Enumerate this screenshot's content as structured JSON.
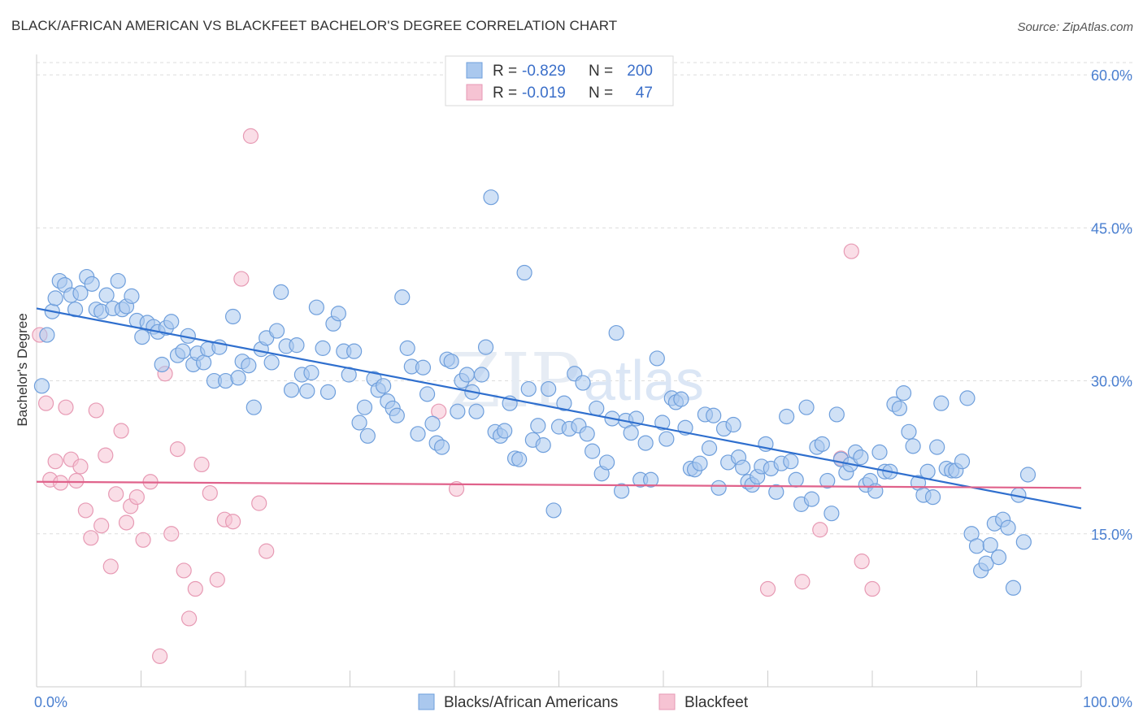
{
  "title": "BLACK/AFRICAN AMERICAN VS BLACKFEET BACHELOR'S DEGREE CORRELATION CHART",
  "source": "Source: ZipAtlas.com",
  "watermark": {
    "zip": "ZIP",
    "atlas": "atlas"
  },
  "legend_top": [
    {
      "r_label": "R =",
      "r_value": "-0.829",
      "n_label": "N =",
      "n_value": "200"
    },
    {
      "r_label": "R =",
      "r_value": "-0.019",
      "n_label": "N =",
      "n_value": "47"
    }
  ],
  "legend_bottom": [
    "Blacks/African Americans",
    "Blackfeet"
  ],
  "colors": {
    "blue_fill": "#aac8ee",
    "blue_stroke": "#6f9fdc",
    "blue_line": "#2f6fce",
    "pink_fill": "#f6c3d3",
    "pink_stroke": "#e79ab4",
    "pink_line": "#e0628b",
    "tick": "#4a7fd0",
    "grid": "#dddddd"
  },
  "chart_data": {
    "type": "scatter",
    "title": "BLACK/AFRICAN AMERICAN VS BLACKFEET BACHELOR'S DEGREE CORRELATION CHART",
    "xlabel": "",
    "ylabel": "Bachelor's Degree",
    "xlim": [
      0,
      100
    ],
    "ylim": [
      0,
      62
    ],
    "x_tick_labels": [
      "0.0%",
      "100.0%"
    ],
    "y_ticks": [
      15,
      30,
      45,
      60
    ],
    "y_tick_labels": [
      "15.0%",
      "30.0%",
      "45.0%",
      "60.0%"
    ],
    "grid": "horizontal dashed",
    "legend": "top-center",
    "series": [
      {
        "name": "Blacks/African Americans",
        "color": "#aac8ee",
        "trend": {
          "x": [
            0,
            100
          ],
          "y": [
            37.1,
            17.5
          ]
        },
        "points": [
          [
            0.5,
            29.5
          ],
          [
            1.0,
            34.5
          ],
          [
            1.5,
            36.8
          ],
          [
            1.8,
            38.1
          ],
          [
            2.2,
            39.8
          ],
          [
            2.7,
            39.4
          ],
          [
            3.3,
            38.4
          ],
          [
            3.7,
            37.0
          ],
          [
            4.2,
            38.6
          ],
          [
            4.8,
            40.2
          ],
          [
            5.3,
            39.5
          ],
          [
            5.7,
            37.0
          ],
          [
            6.2,
            36.8
          ],
          [
            6.7,
            38.4
          ],
          [
            7.3,
            37.1
          ],
          [
            7.8,
            39.8
          ],
          [
            8.2,
            37.0
          ],
          [
            8.6,
            37.3
          ],
          [
            9.1,
            38.3
          ],
          [
            9.6,
            35.9
          ],
          [
            10.1,
            34.3
          ],
          [
            10.6,
            35.7
          ],
          [
            11.2,
            35.3
          ],
          [
            11.6,
            34.8
          ],
          [
            12.0,
            31.6
          ],
          [
            12.4,
            35.2
          ],
          [
            12.9,
            35.8
          ],
          [
            13.5,
            32.5
          ],
          [
            14.0,
            32.9
          ],
          [
            14.5,
            34.4
          ],
          [
            15.0,
            31.6
          ],
          [
            15.4,
            32.7
          ],
          [
            16.0,
            31.8
          ],
          [
            16.4,
            33.1
          ],
          [
            17.0,
            30.0
          ],
          [
            17.5,
            33.3
          ],
          [
            18.1,
            30.0
          ],
          [
            18.8,
            36.3
          ],
          [
            19.3,
            30.3
          ],
          [
            19.7,
            31.9
          ],
          [
            20.3,
            31.5
          ],
          [
            20.8,
            27.4
          ],
          [
            21.5,
            33.1
          ],
          [
            22.0,
            34.2
          ],
          [
            22.5,
            31.8
          ],
          [
            23.0,
            34.9
          ],
          [
            23.4,
            38.7
          ],
          [
            23.9,
            33.4
          ],
          [
            24.4,
            29.1
          ],
          [
            24.9,
            33.5
          ],
          [
            25.4,
            30.6
          ],
          [
            25.9,
            29.0
          ],
          [
            26.3,
            30.8
          ],
          [
            26.8,
            37.2
          ],
          [
            27.4,
            33.2
          ],
          [
            27.9,
            28.9
          ],
          [
            28.4,
            35.6
          ],
          [
            28.9,
            36.6
          ],
          [
            29.4,
            32.9
          ],
          [
            29.9,
            30.6
          ],
          [
            30.4,
            32.9
          ],
          [
            30.9,
            25.9
          ],
          [
            31.4,
            27.4
          ],
          [
            31.7,
            24.6
          ],
          [
            32.3,
            30.2
          ],
          [
            32.7,
            29.1
          ],
          [
            33.2,
            29.5
          ],
          [
            33.6,
            28.0
          ],
          [
            34.1,
            27.3
          ],
          [
            34.5,
            26.6
          ],
          [
            35.0,
            38.2
          ],
          [
            35.5,
            33.2
          ],
          [
            35.9,
            31.4
          ],
          [
            36.5,
            24.8
          ],
          [
            37.0,
            31.3
          ],
          [
            37.4,
            28.7
          ],
          [
            37.9,
            25.8
          ],
          [
            38.3,
            23.9
          ],
          [
            38.8,
            23.5
          ],
          [
            39.3,
            32.1
          ],
          [
            39.7,
            31.9
          ],
          [
            40.3,
            27.0
          ],
          [
            40.7,
            30.0
          ],
          [
            41.2,
            30.6
          ],
          [
            41.7,
            28.9
          ],
          [
            42.1,
            27.0
          ],
          [
            42.6,
            30.6
          ],
          [
            43.0,
            33.3
          ],
          [
            43.5,
            48.0
          ],
          [
            43.9,
            25.0
          ],
          [
            44.4,
            24.6
          ],
          [
            44.8,
            25.1
          ],
          [
            45.3,
            27.8
          ],
          [
            45.8,
            22.4
          ],
          [
            46.2,
            22.3
          ],
          [
            46.7,
            40.6
          ],
          [
            47.1,
            29.2
          ],
          [
            47.5,
            24.2
          ],
          [
            48.0,
            25.6
          ],
          [
            48.5,
            23.7
          ],
          [
            49.0,
            29.2
          ],
          [
            49.5,
            17.3
          ],
          [
            50.0,
            25.5
          ],
          [
            50.5,
            27.8
          ],
          [
            51.0,
            25.3
          ],
          [
            51.5,
            30.7
          ],
          [
            51.9,
            25.6
          ],
          [
            52.3,
            29.8
          ],
          [
            52.7,
            24.8
          ],
          [
            53.2,
            23.1
          ],
          [
            53.6,
            27.3
          ],
          [
            54.1,
            20.9
          ],
          [
            54.6,
            22.0
          ],
          [
            55.1,
            26.3
          ],
          [
            55.5,
            34.7
          ],
          [
            56.0,
            19.2
          ],
          [
            56.4,
            26.1
          ],
          [
            56.9,
            24.9
          ],
          [
            57.4,
            26.3
          ],
          [
            57.8,
            20.3
          ],
          [
            58.3,
            23.9
          ],
          [
            58.8,
            20.3
          ],
          [
            59.4,
            32.2
          ],
          [
            59.9,
            25.9
          ],
          [
            60.3,
            24.3
          ],
          [
            60.8,
            28.3
          ],
          [
            61.2,
            27.9
          ],
          [
            61.7,
            28.2
          ],
          [
            62.1,
            25.4
          ],
          [
            62.6,
            21.4
          ],
          [
            63.0,
            21.3
          ],
          [
            63.5,
            21.9
          ],
          [
            64.0,
            26.7
          ],
          [
            64.4,
            23.4
          ],
          [
            64.8,
            26.6
          ],
          [
            65.3,
            19.5
          ],
          [
            65.8,
            25.3
          ],
          [
            66.2,
            22.0
          ],
          [
            66.7,
            25.7
          ],
          [
            67.2,
            22.5
          ],
          [
            67.6,
            21.5
          ],
          [
            68.1,
            20.1
          ],
          [
            68.5,
            19.8
          ],
          [
            69.0,
            20.6
          ],
          [
            69.4,
            21.6
          ],
          [
            69.8,
            23.8
          ],
          [
            70.3,
            21.4
          ],
          [
            70.8,
            19.1
          ],
          [
            71.3,
            21.9
          ],
          [
            71.8,
            26.5
          ],
          [
            72.2,
            22.1
          ],
          [
            72.7,
            20.3
          ],
          [
            73.2,
            17.9
          ],
          [
            73.7,
            27.4
          ],
          [
            74.2,
            18.4
          ],
          [
            74.7,
            23.5
          ],
          [
            75.2,
            23.8
          ],
          [
            75.7,
            20.2
          ],
          [
            76.1,
            17.0
          ],
          [
            76.6,
            26.7
          ],
          [
            77.0,
            22.3
          ],
          [
            77.5,
            21.0
          ],
          [
            77.9,
            21.8
          ],
          [
            78.4,
            23.0
          ],
          [
            78.9,
            22.5
          ],
          [
            79.4,
            19.8
          ],
          [
            79.8,
            20.2
          ],
          [
            80.3,
            19.2
          ],
          [
            80.7,
            23.0
          ],
          [
            81.2,
            21.1
          ],
          [
            81.7,
            21.1
          ],
          [
            82.1,
            27.7
          ],
          [
            82.6,
            27.3
          ],
          [
            83.0,
            28.8
          ],
          [
            83.5,
            25.0
          ],
          [
            83.9,
            23.6
          ],
          [
            84.4,
            20.0
          ],
          [
            84.9,
            18.8
          ],
          [
            85.3,
            21.1
          ],
          [
            85.8,
            18.6
          ],
          [
            86.2,
            23.5
          ],
          [
            86.6,
            27.8
          ],
          [
            87.1,
            21.4
          ],
          [
            87.6,
            21.2
          ],
          [
            88.0,
            21.2
          ],
          [
            88.6,
            22.1
          ],
          [
            89.1,
            28.3
          ],
          [
            89.5,
            15.0
          ],
          [
            90.0,
            13.8
          ],
          [
            90.4,
            11.4
          ],
          [
            90.9,
            12.1
          ],
          [
            91.3,
            13.9
          ],
          [
            91.7,
            16.0
          ],
          [
            92.1,
            12.7
          ],
          [
            92.5,
            16.4
          ],
          [
            93.0,
            15.6
          ],
          [
            93.5,
            9.7
          ],
          [
            94.0,
            18.8
          ],
          [
            94.5,
            14.2
          ],
          [
            94.9,
            20.8
          ]
        ]
      },
      {
        "name": "Blackfeet",
        "color": "#f6c3d3",
        "trend": {
          "x": [
            0,
            100
          ],
          "y": [
            20.1,
            19.5
          ]
        },
        "points": [
          [
            0.3,
            34.5
          ],
          [
            0.9,
            27.8
          ],
          [
            1.3,
            20.3
          ],
          [
            1.8,
            22.1
          ],
          [
            2.3,
            20.0
          ],
          [
            2.8,
            27.4
          ],
          [
            3.3,
            22.3
          ],
          [
            3.8,
            20.2
          ],
          [
            4.2,
            21.6
          ],
          [
            4.7,
            17.3
          ],
          [
            5.2,
            14.6
          ],
          [
            5.7,
            27.1
          ],
          [
            6.2,
            15.8
          ],
          [
            6.6,
            22.7
          ],
          [
            7.1,
            11.8
          ],
          [
            7.6,
            18.9
          ],
          [
            8.1,
            25.1
          ],
          [
            8.6,
            16.1
          ],
          [
            9.0,
            17.7
          ],
          [
            9.6,
            18.6
          ],
          [
            10.2,
            14.4
          ],
          [
            10.9,
            20.1
          ],
          [
            11.8,
            3.0
          ],
          [
            12.3,
            30.7
          ],
          [
            12.9,
            15.0
          ],
          [
            13.5,
            23.3
          ],
          [
            14.1,
            11.4
          ],
          [
            14.6,
            6.7
          ],
          [
            15.2,
            9.6
          ],
          [
            15.8,
            21.8
          ],
          [
            16.6,
            19.0
          ],
          [
            17.3,
            10.5
          ],
          [
            18.0,
            16.4
          ],
          [
            18.8,
            16.2
          ],
          [
            19.6,
            40.0
          ],
          [
            20.5,
            54.0
          ],
          [
            21.3,
            18.0
          ],
          [
            22.0,
            13.3
          ],
          [
            38.5,
            27.0
          ],
          [
            40.2,
            19.4
          ],
          [
            70.0,
            9.6
          ],
          [
            73.3,
            10.3
          ],
          [
            75.0,
            15.4
          ],
          [
            77.0,
            22.4
          ],
          [
            78.0,
            42.7
          ],
          [
            79.0,
            12.3
          ],
          [
            80.0,
            9.6
          ]
        ]
      }
    ]
  }
}
